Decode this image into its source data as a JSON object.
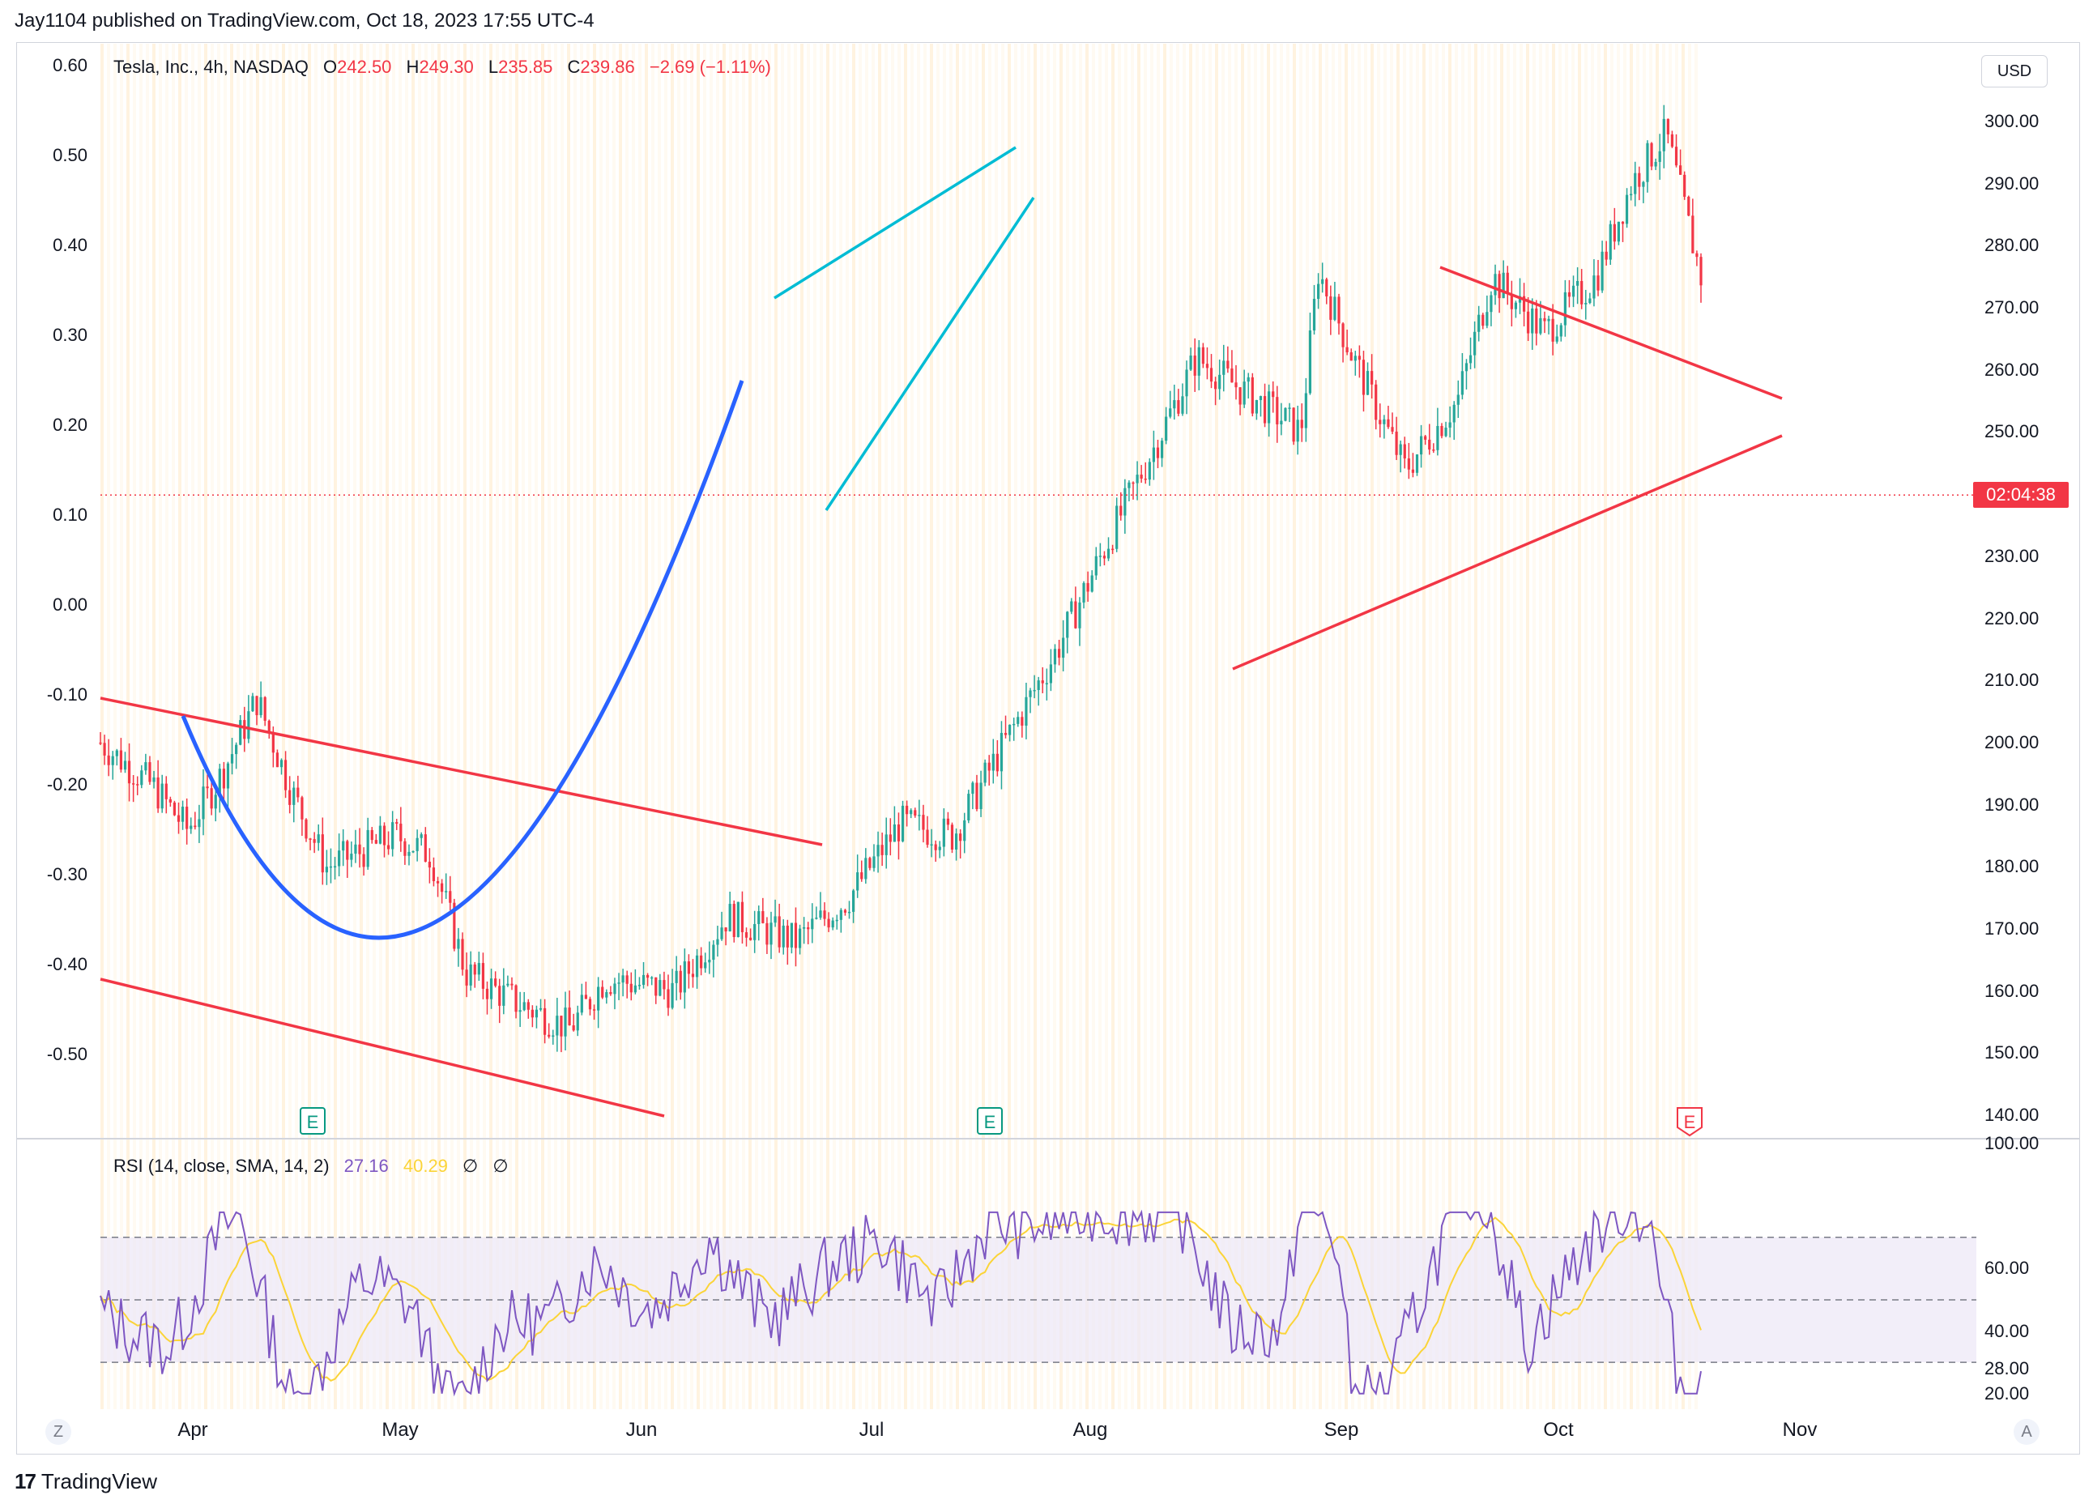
{
  "header": {
    "published": "Jay1104 published on TradingView.com, Oct 18, 2023 17:55 UTC-4"
  },
  "legend": {
    "symbol": "Tesla, Inc., 4h, NASDAQ",
    "o_label": "O",
    "o_value": "242.50",
    "h_label": "H",
    "h_value": "249.30",
    "l_label": "L",
    "l_value": "235.85",
    "c_label": "C",
    "c_value": "239.86",
    "change": "−2.69 (−1.11%)"
  },
  "currency": "USD",
  "countdown": "02:04:38",
  "rsi_legend": {
    "title": "RSI (14, close, SMA, 14, 2)",
    "rsi_value": "27.16",
    "sma_value": "40.29",
    "n1": "∅",
    "n2": "∅"
  },
  "footer": {
    "logo_text": "TradingView"
  },
  "buttons": {
    "z": "Z",
    "a": "A"
  },
  "earnings_label": "E",
  "colors": {
    "up": "#26a69a",
    "down": "#f23645",
    "trend_red": "#f23645",
    "cup_blue": "#2962ff",
    "wedge_cyan": "#00bcd4",
    "rsi": "#7e57c2",
    "rsi_sma": "#fbd438"
  },
  "chart_data": [
    {
      "type": "candlestick",
      "symbol": "TSLA",
      "interval": "4h",
      "right_axis_ticks": [
        "300.00",
        "290.00",
        "280.00",
        "270.00",
        "260.00",
        "250.00",
        "230.00",
        "220.00",
        "210.00",
        "200.00",
        "190.00",
        "180.00",
        "170.00",
        "160.00",
        "150.00",
        "140.00"
      ],
      "left_axis_ticks": [
        "0.60",
        "0.50",
        "0.40",
        "0.30",
        "0.20",
        "0.10",
        "0.00",
        "-0.10",
        "-0.20",
        "-0.30",
        "-0.40",
        "-0.50"
      ],
      "x_tick_labels": [
        "Apr",
        "May",
        "Jun",
        "Jul",
        "Aug",
        "Sep",
        "Oct",
        "Nov"
      ],
      "ylim": [
        137,
        312
      ],
      "current_price_line": 239.86,
      "price_path": [
        {
          "t": 0.0,
          "p": 200
        },
        {
          "t": 0.03,
          "p": 193
        },
        {
          "t": 0.05,
          "p": 186
        },
        {
          "t": 0.07,
          "p": 195
        },
        {
          "t": 0.09,
          "p": 207
        },
        {
          "t": 0.11,
          "p": 192
        },
        {
          "t": 0.13,
          "p": 180
        },
        {
          "t": 0.17,
          "p": 185
        },
        {
          "t": 0.19,
          "p": 182
        },
        {
          "t": 0.21,
          "p": 163
        },
        {
          "t": 0.24,
          "p": 158
        },
        {
          "t": 0.27,
          "p": 154
        },
        {
          "t": 0.29,
          "p": 162
        },
        {
          "t": 0.33,
          "p": 160
        },
        {
          "t": 0.36,
          "p": 172
        },
        {
          "t": 0.4,
          "p": 168
        },
        {
          "t": 0.43,
          "p": 175
        },
        {
          "t": 0.46,
          "p": 187
        },
        {
          "t": 0.49,
          "p": 185
        },
        {
          "t": 0.52,
          "p": 200
        },
        {
          "t": 0.55,
          "p": 215
        },
        {
          "t": 0.58,
          "p": 233
        },
        {
          "t": 0.61,
          "p": 250
        },
        {
          "t": 0.63,
          "p": 262
        },
        {
          "t": 0.66,
          "p": 256
        },
        {
          "t": 0.69,
          "p": 250
        },
        {
          "t": 0.7,
          "p": 276
        },
        {
          "t": 0.72,
          "p": 262
        },
        {
          "t": 0.75,
          "p": 244
        },
        {
          "t": 0.78,
          "p": 255
        },
        {
          "t": 0.8,
          "p": 275
        },
        {
          "t": 0.83,
          "p": 266
        },
        {
          "t": 0.86,
          "p": 275
        },
        {
          "t": 0.88,
          "p": 290
        },
        {
          "t": 0.9,
          "p": 298
        },
        {
          "t": 0.92,
          "p": 275
        }
      ],
      "earnings_markers": [
        "Apr 19",
        "Jul 19",
        "Oct 18"
      ]
    },
    {
      "type": "line",
      "title": "RSI (14, close, SMA, 14, 2)",
      "right_axis_ticks": [
        "100.00",
        "60.00",
        "40.00",
        "28.00",
        "20.00"
      ],
      "band": [
        30,
        70
      ],
      "mid": 50,
      "series": [
        {
          "name": "RSI",
          "last": 27.16
        },
        {
          "name": "SMA",
          "last": 40.29
        }
      ]
    }
  ]
}
